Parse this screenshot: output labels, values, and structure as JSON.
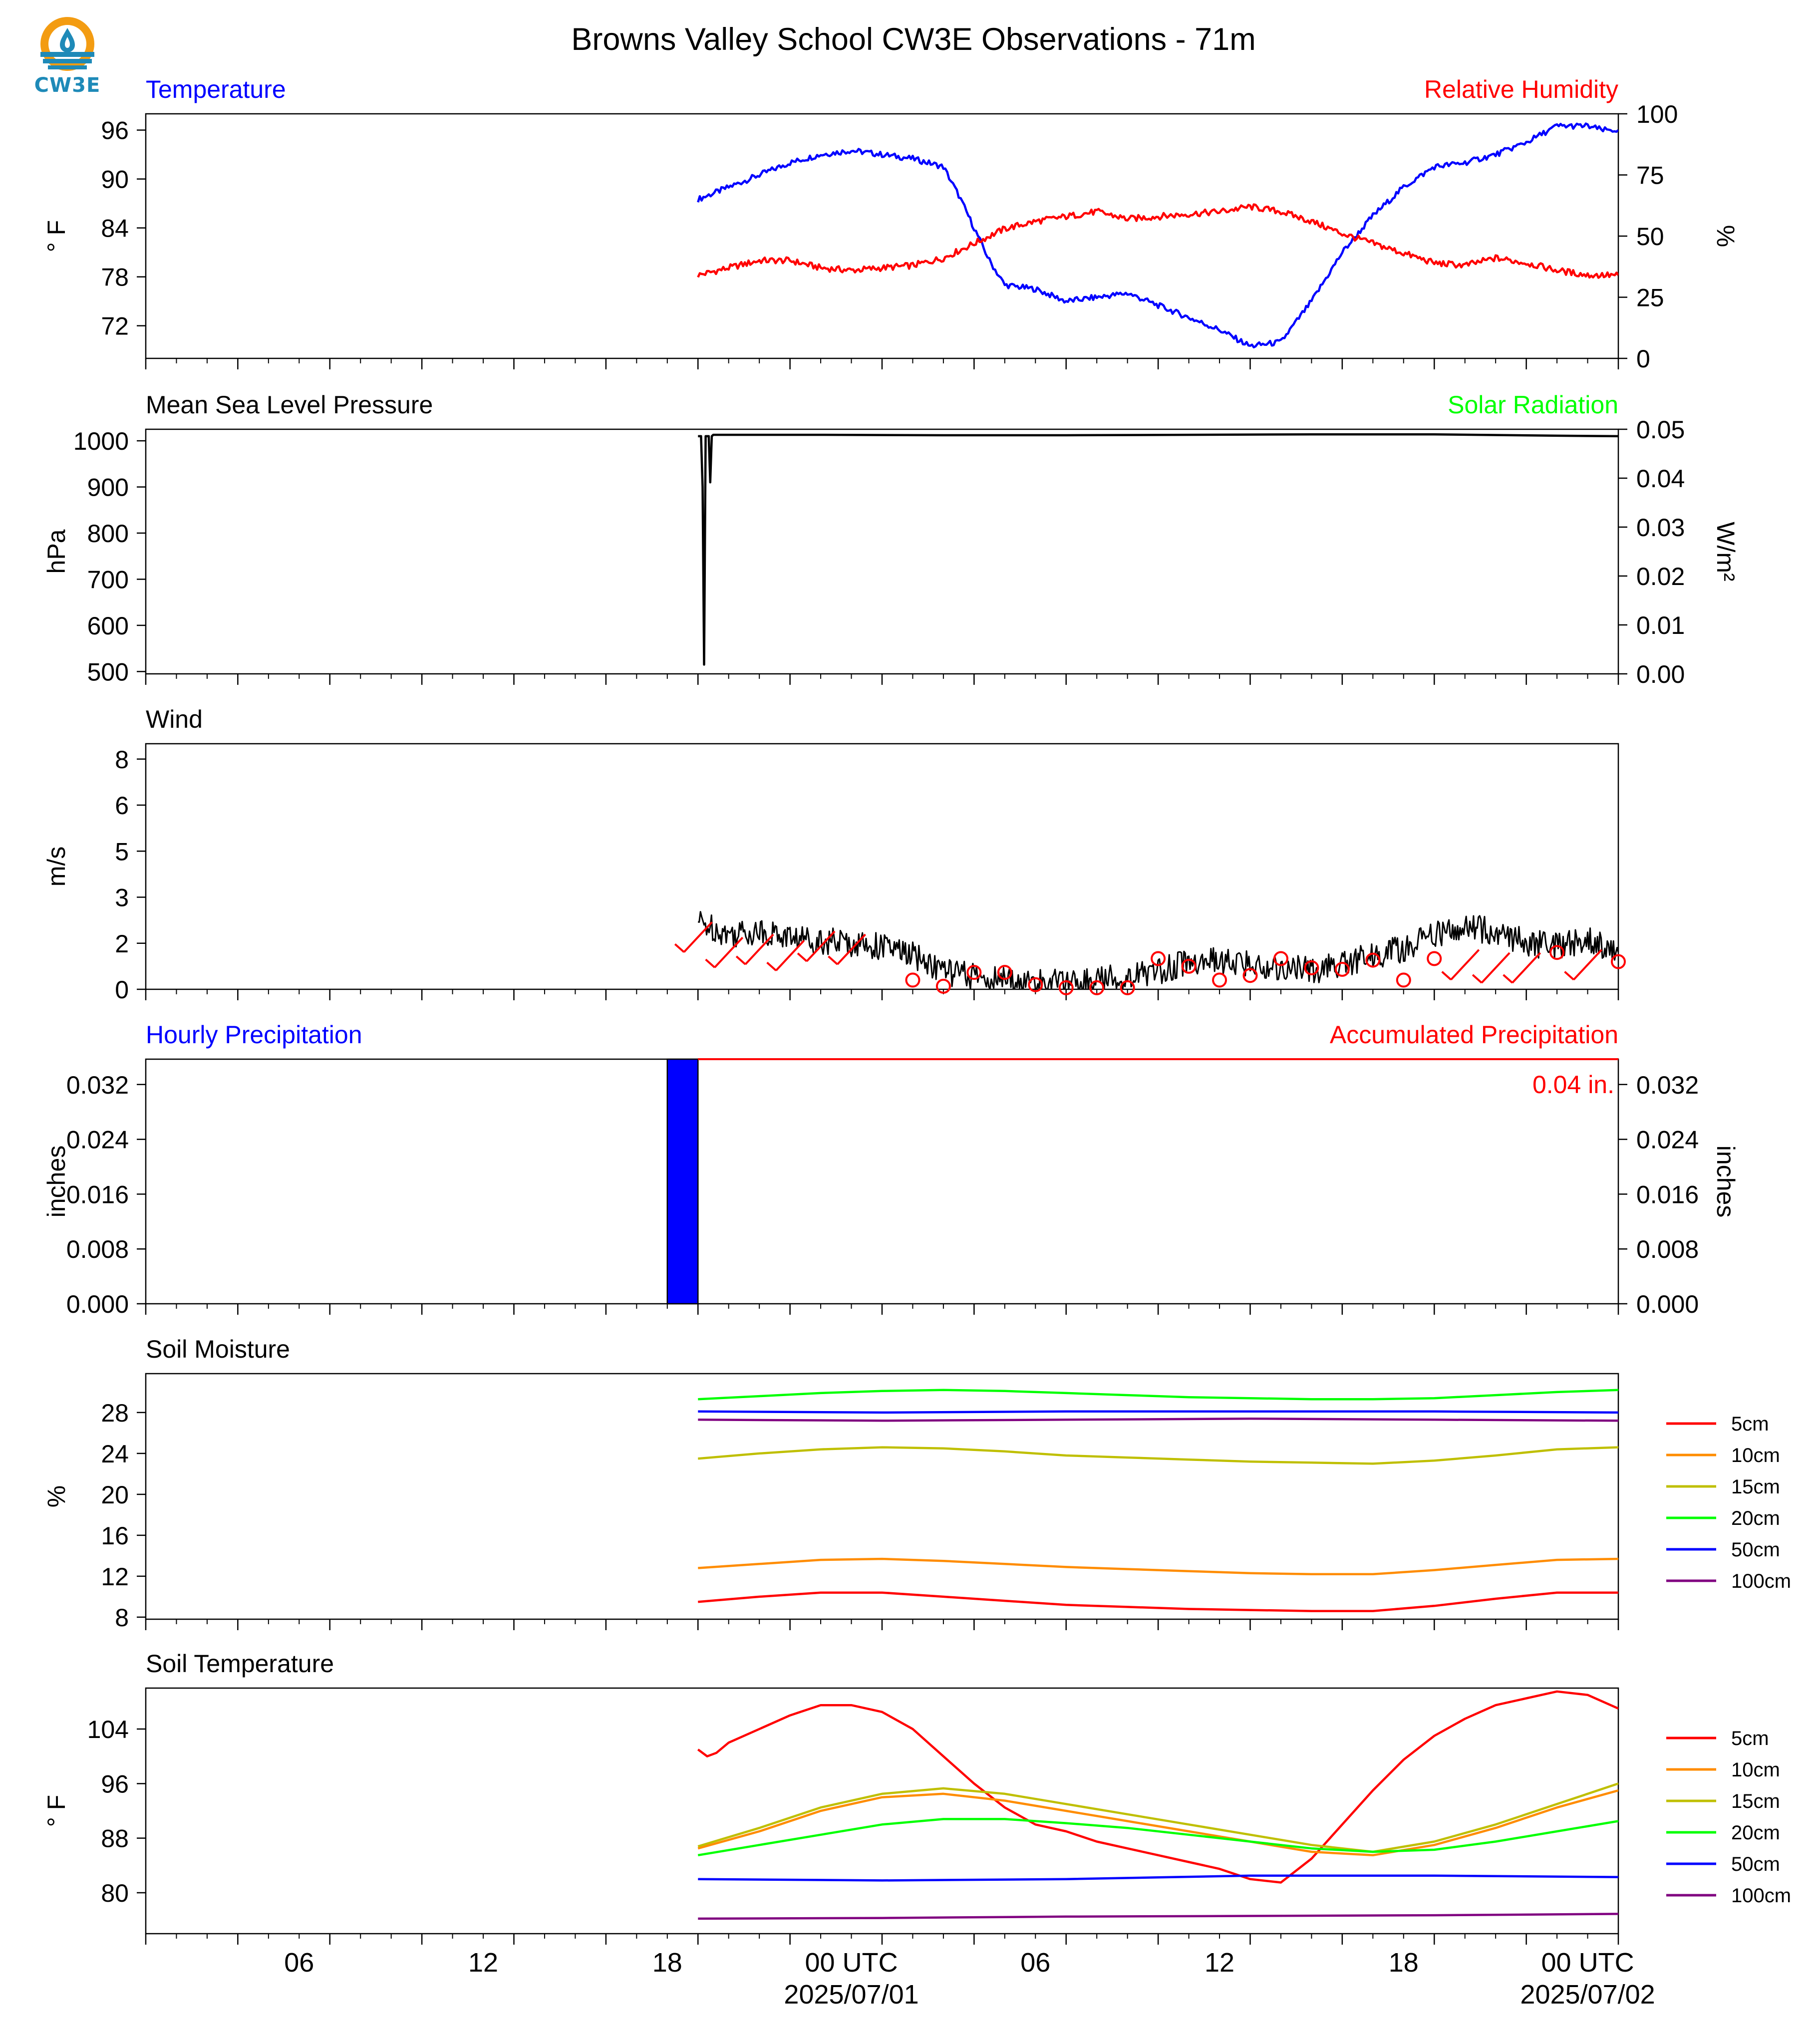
{
  "figure": {
    "title": "Browns Valley School CW3E Observations - 71m",
    "logo_text": "CW3E",
    "logo_colors": {
      "orange": "#f39c12",
      "blue": "#1e8ab8"
    }
  },
  "time_axis": {
    "start_hour": 0,
    "end_hour": 48,
    "tick_hours": [
      0,
      3,
      6,
      9,
      12,
      15,
      18,
      21,
      24,
      27,
      30,
      33,
      36,
      39,
      42,
      45,
      48
    ],
    "labels": [
      {
        "hour": 5,
        "text": "06",
        "sub": ""
      },
      {
        "hour": 11,
        "text": "12",
        "sub": ""
      },
      {
        "hour": 17,
        "text": "18",
        "sub": ""
      },
      {
        "hour": 23,
        "text": "00 UTC",
        "sub": "2025/07/01"
      },
      {
        "hour": 29,
        "text": "06",
        "sub": ""
      },
      {
        "hour": 35,
        "text": "12",
        "sub": ""
      },
      {
        "hour": 41,
        "text": "18",
        "sub": ""
      },
      {
        "hour": 47,
        "text": "00 UTC",
        "sub": "2025/07/02"
      }
    ]
  },
  "chart_data": [
    {
      "type": "line",
      "panel": "temperature-humidity",
      "title_left": "Temperature",
      "title_right": "Relative Humidity",
      "ylabel_left": "° F",
      "ylabel_right": "%",
      "ylim_left": [
        68,
        98
      ],
      "ylim_right": [
        0,
        100
      ],
      "yticks_left": [
        72,
        78,
        84,
        90,
        96
      ],
      "yticks_right": [
        0,
        25,
        50,
        75,
        100
      ],
      "colors": {
        "title_left": "#0000ff",
        "title_right": "#ff0000"
      },
      "series": [
        {
          "name": "Temperature",
          "axis": "left",
          "color": "#0000ff",
          "x": [
            18,
            19,
            20,
            21,
            22,
            23,
            24,
            25,
            26,
            26.5,
            27,
            27.5,
            28,
            29,
            30,
            31,
            32,
            33,
            34,
            35,
            36,
            37,
            38,
            39,
            40,
            41,
            42,
            43,
            44,
            45,
            45.5,
            46,
            47,
            47.5,
            48
          ],
          "y": [
            87.5,
            89,
            90.5,
            92,
            93,
            93.5,
            93,
            92.5,
            91.5,
            88,
            84,
            80,
            77,
            76.5,
            75,
            75.5,
            76,
            74.5,
            73,
            71.5,
            69.5,
            70,
            75,
            81,
            85.5,
            89,
            91.5,
            92,
            93,
            94.5,
            95.5,
            96.5,
            96.5,
            96,
            96
          ]
        },
        {
          "name": "Relative Humidity",
          "axis": "right",
          "color": "#ff0000",
          "x": [
            18,
            19,
            20,
            21,
            22,
            23,
            24,
            25,
            26,
            27,
            28,
            29,
            30,
            31,
            32,
            33,
            34,
            35,
            36,
            37,
            38,
            39,
            40,
            41,
            42,
            43,
            44,
            45,
            46,
            47,
            48
          ],
          "y": [
            34,
            37,
            40,
            40,
            37,
            36,
            37,
            38,
            41,
            47,
            53,
            56,
            58,
            60,
            57,
            58,
            59,
            60,
            62,
            60,
            56,
            51,
            47,
            43,
            39,
            38,
            41,
            39,
            36,
            34,
            34
          ]
        }
      ]
    },
    {
      "type": "line",
      "panel": "pressure-solar",
      "title_left": "Mean Sea Level Pressure",
      "title_right": "Solar Radiation",
      "ylabel_left": "hPa",
      "ylabel_right": "W/m²",
      "ylim_left": [
        495,
        1025
      ],
      "ylim_right": [
        0,
        0.05
      ],
      "yticks_left": [
        500,
        600,
        700,
        800,
        900,
        1000
      ],
      "yticks_right": [
        0.0,
        0.01,
        0.02,
        0.03,
        0.04,
        0.05
      ],
      "colors": {
        "title_right": "#00ff00"
      },
      "series": [
        {
          "name": "Mean Sea Level Pressure",
          "axis": "left",
          "color": "#000000",
          "x": [
            18,
            18.1,
            18.15,
            18.2,
            18.25,
            18.3,
            18.35,
            18.4,
            18.45,
            18.5,
            19,
            22,
            26,
            30,
            34,
            38,
            42,
            46,
            48
          ],
          "y": [
            1010,
            1010,
            900,
            515,
            1010,
            1010,
            1010,
            910,
            1010,
            1013,
            1013,
            1013,
            1012,
            1012,
            1013,
            1014,
            1014,
            1011,
            1010
          ]
        }
      ]
    },
    {
      "type": "line",
      "panel": "wind",
      "title_left": "Wind",
      "ylabel_left": "m/s",
      "ylim_left": [
        0,
        8
      ],
      "yticks_left": [
        0.0,
        1.5,
        3.0,
        4.5,
        6.0,
        7.5
      ],
      "series": [
        {
          "name": "Wind",
          "axis": "left",
          "color": "#000000",
          "x": [
            18,
            19,
            20,
            21,
            22,
            23,
            24,
            25,
            26,
            27,
            28,
            29,
            30,
            31,
            32,
            33,
            34,
            35,
            36,
            37,
            38,
            39,
            40,
            41,
            42,
            43,
            44,
            45,
            46,
            47,
            48
          ],
          "y": [
            2.2,
            1.8,
            1.9,
            1.7,
            1.6,
            1.5,
            1.4,
            1.1,
            0.6,
            0.4,
            0.3,
            0.2,
            0.2,
            0.3,
            0.4,
            0.6,
            0.9,
            0.9,
            0.8,
            0.7,
            0.6,
            0.8,
            1.1,
            1.3,
            1.8,
            2.0,
            1.9,
            1.5,
            1.4,
            1.6,
            1.2
          ]
        }
      ],
      "markers": {
        "color": "#ff0000",
        "circles": [
          {
            "x": 25,
            "y": 0.3
          },
          {
            "x": 26,
            "y": 0.1
          },
          {
            "x": 27,
            "y": 0.55
          },
          {
            "x": 28,
            "y": 0.55
          },
          {
            "x": 29,
            "y": 0.15
          },
          {
            "x": 30,
            "y": 0.05
          },
          {
            "x": 31,
            "y": 0.05
          },
          {
            "x": 32,
            "y": 0.05
          },
          {
            "x": 33,
            "y": 1.0
          },
          {
            "x": 34,
            "y": 0.75
          },
          {
            "x": 35,
            "y": 0.3
          },
          {
            "x": 36,
            "y": 0.45
          },
          {
            "x": 37,
            "y": 1.0
          },
          {
            "x": 38,
            "y": 0.7
          },
          {
            "x": 39,
            "y": 0.65
          },
          {
            "x": 40,
            "y": 0.95
          },
          {
            "x": 41,
            "y": 0.3
          },
          {
            "x": 42,
            "y": 1.0
          },
          {
            "x": 46,
            "y": 1.2
          },
          {
            "x": 48,
            "y": 0.9
          }
        ],
        "barbs": [
          {
            "x": 18,
            "y": 1.7
          },
          {
            "x": 19,
            "y": 1.2
          },
          {
            "x": 20,
            "y": 1.3
          },
          {
            "x": 21,
            "y": 1.1
          },
          {
            "x": 22,
            "y": 1.4
          },
          {
            "x": 23,
            "y": 1.3
          },
          {
            "x": 43,
            "y": 0.8
          },
          {
            "x": 44,
            "y": 0.7
          },
          {
            "x": 45,
            "y": 0.7
          },
          {
            "x": 47,
            "y": 0.8
          }
        ]
      }
    },
    {
      "type": "bar",
      "panel": "precipitation",
      "title_left": "Hourly Precipitation",
      "title_right": "Accumulated Precipitation",
      "ylabel_left": "inches",
      "ylabel_right": "inches",
      "ylim_left": [
        0,
        0.0357
      ],
      "ylim_right": [
        0,
        0.0357
      ],
      "yticks_left": [
        0.0,
        0.008,
        0.016,
        0.024,
        0.032
      ],
      "yticks_right": [
        0.0,
        0.008,
        0.016,
        0.024,
        0.032
      ],
      "colors": {
        "title_left": "#0000ff",
        "title_right": "#ff0000",
        "bar": "#0000ff",
        "accum": "#ff0000"
      },
      "bars": [
        {
          "x_start": 17,
          "x_end": 18,
          "value": 0.0357
        }
      ],
      "accumulated": {
        "x": [
          18,
          48
        ],
        "y": [
          0.0357,
          0.0357
        ]
      },
      "annotation": "0.04 in."
    },
    {
      "type": "line",
      "panel": "soil-moisture",
      "title_left": "Soil Moisture",
      "ylabel_left": "%",
      "ylim_left": [
        7.8,
        31.8
      ],
      "yticks_left": [
        8,
        12,
        16,
        20,
        24,
        28
      ],
      "legend_position": "right",
      "series": [
        {
          "name": "5cm",
          "color": "#ff0000",
          "x": [
            18,
            20,
            22,
            24,
            26,
            28,
            30,
            32,
            34,
            36,
            38,
            40,
            42,
            44,
            46,
            48
          ],
          "y": [
            9.5,
            10,
            10.4,
            10.4,
            10,
            9.6,
            9.2,
            9.0,
            8.8,
            8.7,
            8.6,
            8.6,
            9.1,
            9.8,
            10.4,
            10.4
          ]
        },
        {
          "name": "10cm",
          "color": "#ff8c00",
          "x": [
            18,
            20,
            22,
            24,
            26,
            28,
            30,
            32,
            34,
            36,
            38,
            40,
            42,
            44,
            46,
            48
          ],
          "y": [
            12.8,
            13.2,
            13.6,
            13.7,
            13.5,
            13.2,
            12.9,
            12.7,
            12.5,
            12.3,
            12.2,
            12.2,
            12.6,
            13.1,
            13.6,
            13.7
          ]
        },
        {
          "name": "15cm",
          "color": "#bfbf00",
          "x": [
            18,
            20,
            22,
            24,
            26,
            28,
            30,
            32,
            34,
            36,
            38,
            40,
            42,
            44,
            46,
            48
          ],
          "y": [
            23.5,
            24,
            24.4,
            24.6,
            24.5,
            24.2,
            23.8,
            23.6,
            23.4,
            23.2,
            23.1,
            23.0,
            23.3,
            23.8,
            24.4,
            24.6
          ]
        },
        {
          "name": "20cm",
          "color": "#00ff00",
          "x": [
            18,
            20,
            22,
            24,
            26,
            28,
            30,
            32,
            34,
            36,
            38,
            40,
            42,
            44,
            46,
            48
          ],
          "y": [
            29.3,
            29.6,
            29.9,
            30.1,
            30.2,
            30.1,
            29.9,
            29.7,
            29.5,
            29.4,
            29.3,
            29.3,
            29.4,
            29.7,
            30.0,
            30.2
          ]
        },
        {
          "name": "50cm",
          "color": "#0000ff",
          "x": [
            18,
            24,
            30,
            36,
            42,
            48
          ],
          "y": [
            28.1,
            28.0,
            28.1,
            28.1,
            28.1,
            28.0
          ]
        },
        {
          "name": "100cm",
          "color": "#800080",
          "x": [
            18,
            24,
            30,
            36,
            42,
            48
          ],
          "y": [
            27.3,
            27.2,
            27.3,
            27.4,
            27.3,
            27.2
          ]
        }
      ]
    },
    {
      "type": "line",
      "panel": "soil-temperature",
      "title_left": "Soil Temperature",
      "ylabel_left": "° F",
      "ylim_left": [
        74,
        110
      ],
      "yticks_left": [
        80,
        88,
        96,
        104
      ],
      "legend_position": "right",
      "series": [
        {
          "name": "5cm",
          "color": "#ff0000",
          "x": [
            18,
            18.3,
            18.6,
            19,
            20,
            21,
            22,
            23,
            24,
            25,
            26,
            27,
            28,
            29,
            30,
            31,
            32,
            33,
            34,
            35,
            36,
            37,
            38,
            39,
            40,
            41,
            42,
            43,
            44,
            45,
            46,
            47,
            48
          ],
          "y": [
            101,
            100,
            100.5,
            102,
            104,
            106,
            107.5,
            107.5,
            106.5,
            104,
            100,
            96,
            92.5,
            90,
            89,
            87.5,
            86.5,
            85.5,
            84.5,
            83.5,
            82,
            81.5,
            85,
            90,
            95,
            99.5,
            103,
            105.5,
            107.5,
            108.5,
            109.5,
            109,
            107
          ]
        },
        {
          "name": "10cm",
          "color": "#ff8c00",
          "x": [
            18,
            20,
            22,
            24,
            26,
            28,
            30,
            32,
            34,
            36,
            38,
            40,
            42,
            44,
            46,
            48
          ],
          "y": [
            86.5,
            89,
            92,
            94,
            94.5,
            93.5,
            92,
            90.5,
            89,
            87.5,
            86,
            85.5,
            87,
            89.5,
            92.5,
            95
          ]
        },
        {
          "name": "15cm",
          "color": "#bfbf00",
          "x": [
            18,
            20,
            22,
            24,
            26,
            28,
            30,
            32,
            34,
            36,
            38,
            40,
            42,
            44,
            46,
            48
          ],
          "y": [
            86.8,
            89.5,
            92.5,
            94.5,
            95.3,
            94.5,
            93,
            91.5,
            90,
            88.5,
            87,
            86,
            87.5,
            90,
            93,
            96
          ]
        },
        {
          "name": "20cm",
          "color": "#00ff00",
          "x": [
            18,
            20,
            22,
            24,
            26,
            28,
            30,
            32,
            34,
            36,
            38,
            40,
            42,
            44,
            46,
            48
          ],
          "y": [
            85.5,
            87,
            88.5,
            90,
            90.8,
            90.8,
            90.2,
            89.5,
            88.5,
            87.5,
            86.5,
            86,
            86.3,
            87.5,
            89,
            90.5
          ]
        },
        {
          "name": "50cm",
          "color": "#0000ff",
          "x": [
            18,
            24,
            30,
            36,
            42,
            48
          ],
          "y": [
            82,
            81.8,
            82,
            82.5,
            82.5,
            82.3
          ]
        },
        {
          "name": "100cm",
          "color": "#800080",
          "x": [
            18,
            24,
            30,
            36,
            42,
            48
          ],
          "y": [
            76.2,
            76.3,
            76.5,
            76.6,
            76.7,
            76.9
          ]
        }
      ]
    }
  ]
}
